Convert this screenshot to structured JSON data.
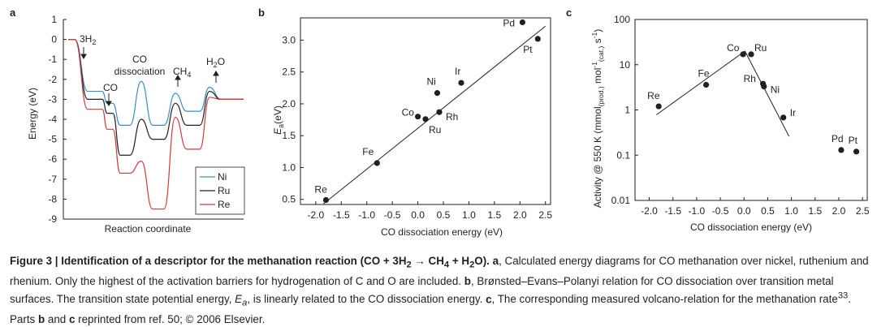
{
  "panel_letters": [
    "a",
    "b",
    "c"
  ],
  "chart_data": [
    {
      "type": "line",
      "panel": "a",
      "xlabel": "Reaction coordinate",
      "ylabel": "Energy (eV)",
      "ylim": [
        -9,
        1
      ],
      "yticks": [
        "1",
        "0",
        "-1",
        "-2",
        "-3",
        "-4",
        "-5",
        "-6",
        "-7",
        "-8",
        "-9"
      ],
      "annotations": [
        "3H",
        "2",
        "CO",
        "CO",
        "dissociation",
        "CH",
        "4",
        "H",
        "2",
        "O"
      ],
      "legend_position": "bottom-right",
      "series": [
        {
          "name": "Ni",
          "color": "#3a8fc7",
          "profile": [
            0,
            0,
            -2.6,
            -2.6,
            -3.2,
            -3.2,
            -4.3,
            -4.3,
            -2.1,
            -4.3,
            -4.3,
            -2.7,
            -3.6,
            -3.6,
            -2.4,
            -3.0,
            -3.0
          ]
        },
        {
          "name": "Ru",
          "color": "#231f20",
          "profile": [
            0,
            0,
            -3.0,
            -3.0,
            -3.7,
            -3.7,
            -5.8,
            -5.8,
            -4.0,
            -5.0,
            -5.0,
            -3.2,
            -4.3,
            -4.3,
            -2.6,
            -3.0,
            -3.0
          ]
        },
        {
          "name": "Re",
          "color": "#d03a3a",
          "profile": [
            0,
            0,
            -3.5,
            -3.5,
            -4.5,
            -4.5,
            -6.7,
            -6.7,
            -6.1,
            -8.5,
            -8.5,
            -3.9,
            -5.5,
            -5.5,
            -2.9,
            -3.0,
            -3.0
          ]
        }
      ]
    },
    {
      "type": "scatter",
      "panel": "b",
      "xlabel": "CO dissociation energy (eV)",
      "ylabel": "E",
      "ylabel_sub": "a",
      "ylabel_unit": "(eV)",
      "xlim": [
        -2.3,
        2.6
      ],
      "ylim": [
        0.42,
        3.35
      ],
      "xticks": [
        "-2.0",
        "-1.5",
        "-1.0",
        "-0.5",
        "0.0",
        "0.5",
        "1.0",
        "1.5",
        "2.0",
        "2.5"
      ],
      "yticks": [
        "0.5",
        "1.0",
        "1.5",
        "2.0",
        "2.5",
        "3.0"
      ],
      "points": [
        {
          "label": "Re",
          "x": -1.8,
          "y": 0.49
        },
        {
          "label": "Fe",
          "x": -0.8,
          "y": 1.07
        },
        {
          "label": "Co",
          "x": 0.0,
          "y": 1.8
        },
        {
          "label": "Ru",
          "x": 0.15,
          "y": 1.76
        },
        {
          "label": "Rh",
          "x": 0.42,
          "y": 1.87
        },
        {
          "label": "Ni",
          "x": 0.38,
          "y": 2.17
        },
        {
          "label": "Ir",
          "x": 0.85,
          "y": 2.33
        },
        {
          "label": "Pd",
          "x": 2.05,
          "y": 3.28
        },
        {
          "label": "Pt",
          "x": 2.35,
          "y": 3.02
        }
      ],
      "fit_line": [
        [
          -1.85,
          0.43
        ],
        [
          2.5,
          3.22
        ]
      ]
    },
    {
      "type": "scatter",
      "panel": "c",
      "xlabel": "CO dissociation energy (eV)",
      "ylabel": "Activity @ 550 K (mmol",
      "ylabel_sub1": "(prod.)",
      "ylabel_mid": " mol",
      "ylabel_sup1": "-1",
      "ylabel_sub2": "(cat.)",
      "ylabel_end": " s",
      "ylabel_sup2": "-1",
      "ylabel_close": ")",
      "yscale": "log",
      "xlim": [
        -2.3,
        2.6
      ],
      "ylim": [
        0.01,
        100
      ],
      "xticks": [
        "-2.0",
        "-1.5",
        "-1.0",
        "-0.5",
        "0.0",
        "0.5",
        "1.0",
        "1.5",
        "2.0",
        "2.5"
      ],
      "yticks": [
        "0.01",
        "0.1",
        "1",
        "10",
        "100"
      ],
      "points": [
        {
          "label": "Re",
          "x": -1.8,
          "y": 1.2
        },
        {
          "label": "Fe",
          "x": -0.8,
          "y": 3.6
        },
        {
          "label": "Co",
          "x": -0.02,
          "y": 17
        },
        {
          "label": "Ru",
          "x": 0.15,
          "y": 17
        },
        {
          "label": "Rh",
          "x": 0.4,
          "y": 3.8
        },
        {
          "label": "Ni",
          "x": 0.42,
          "y": 3.3
        },
        {
          "label": "Ir",
          "x": 0.83,
          "y": 0.68
        },
        {
          "label": "Pd",
          "x": 2.05,
          "y": 0.13
        },
        {
          "label": "Pt",
          "x": 2.37,
          "y": 0.12
        }
      ],
      "volcano_line": [
        [
          -1.85,
          0.78
        ],
        [
          0.02,
          20
        ],
        [
          0.95,
          0.26
        ]
      ]
    }
  ],
  "caption": {
    "figure_number": "Figure 3 | ",
    "title_pre": "Identification of a descriptor for the methanation reaction (CO + 3H",
    "title_sub1": "2",
    "title_arrow": " → CH",
    "title_sub2": "4",
    "title_post": " + H",
    "title_sub3": "2",
    "title_end": "O).",
    "a_letter": "a",
    "a_text": ", Calculated energy diagrams for CO methanation over nickel, ruthenium and rhenium. Only the highest of the activation barriers for hydrogenation of C and O are included.",
    "b_letter": "b",
    "b_text_pre": ", Brønsted–Evans–Polanyi relation for CO dissociation over transition metal surfaces. The transition state potential energy, ",
    "b_E": "E",
    "b_E_sub": "a",
    "b_text_post": ", is linearly related to the CO dissociation energy.",
    "c_letter": "c",
    "c_text": ", The corresponding measured volcano-relation for the methanation rate",
    "c_ref": "33",
    "c_text2": ". Parts ",
    "parts_b": "b",
    "and_text": " and ",
    "parts_c": "c",
    "ref_text": " reprinted from ref. 50; © 2006 Elsevier."
  }
}
